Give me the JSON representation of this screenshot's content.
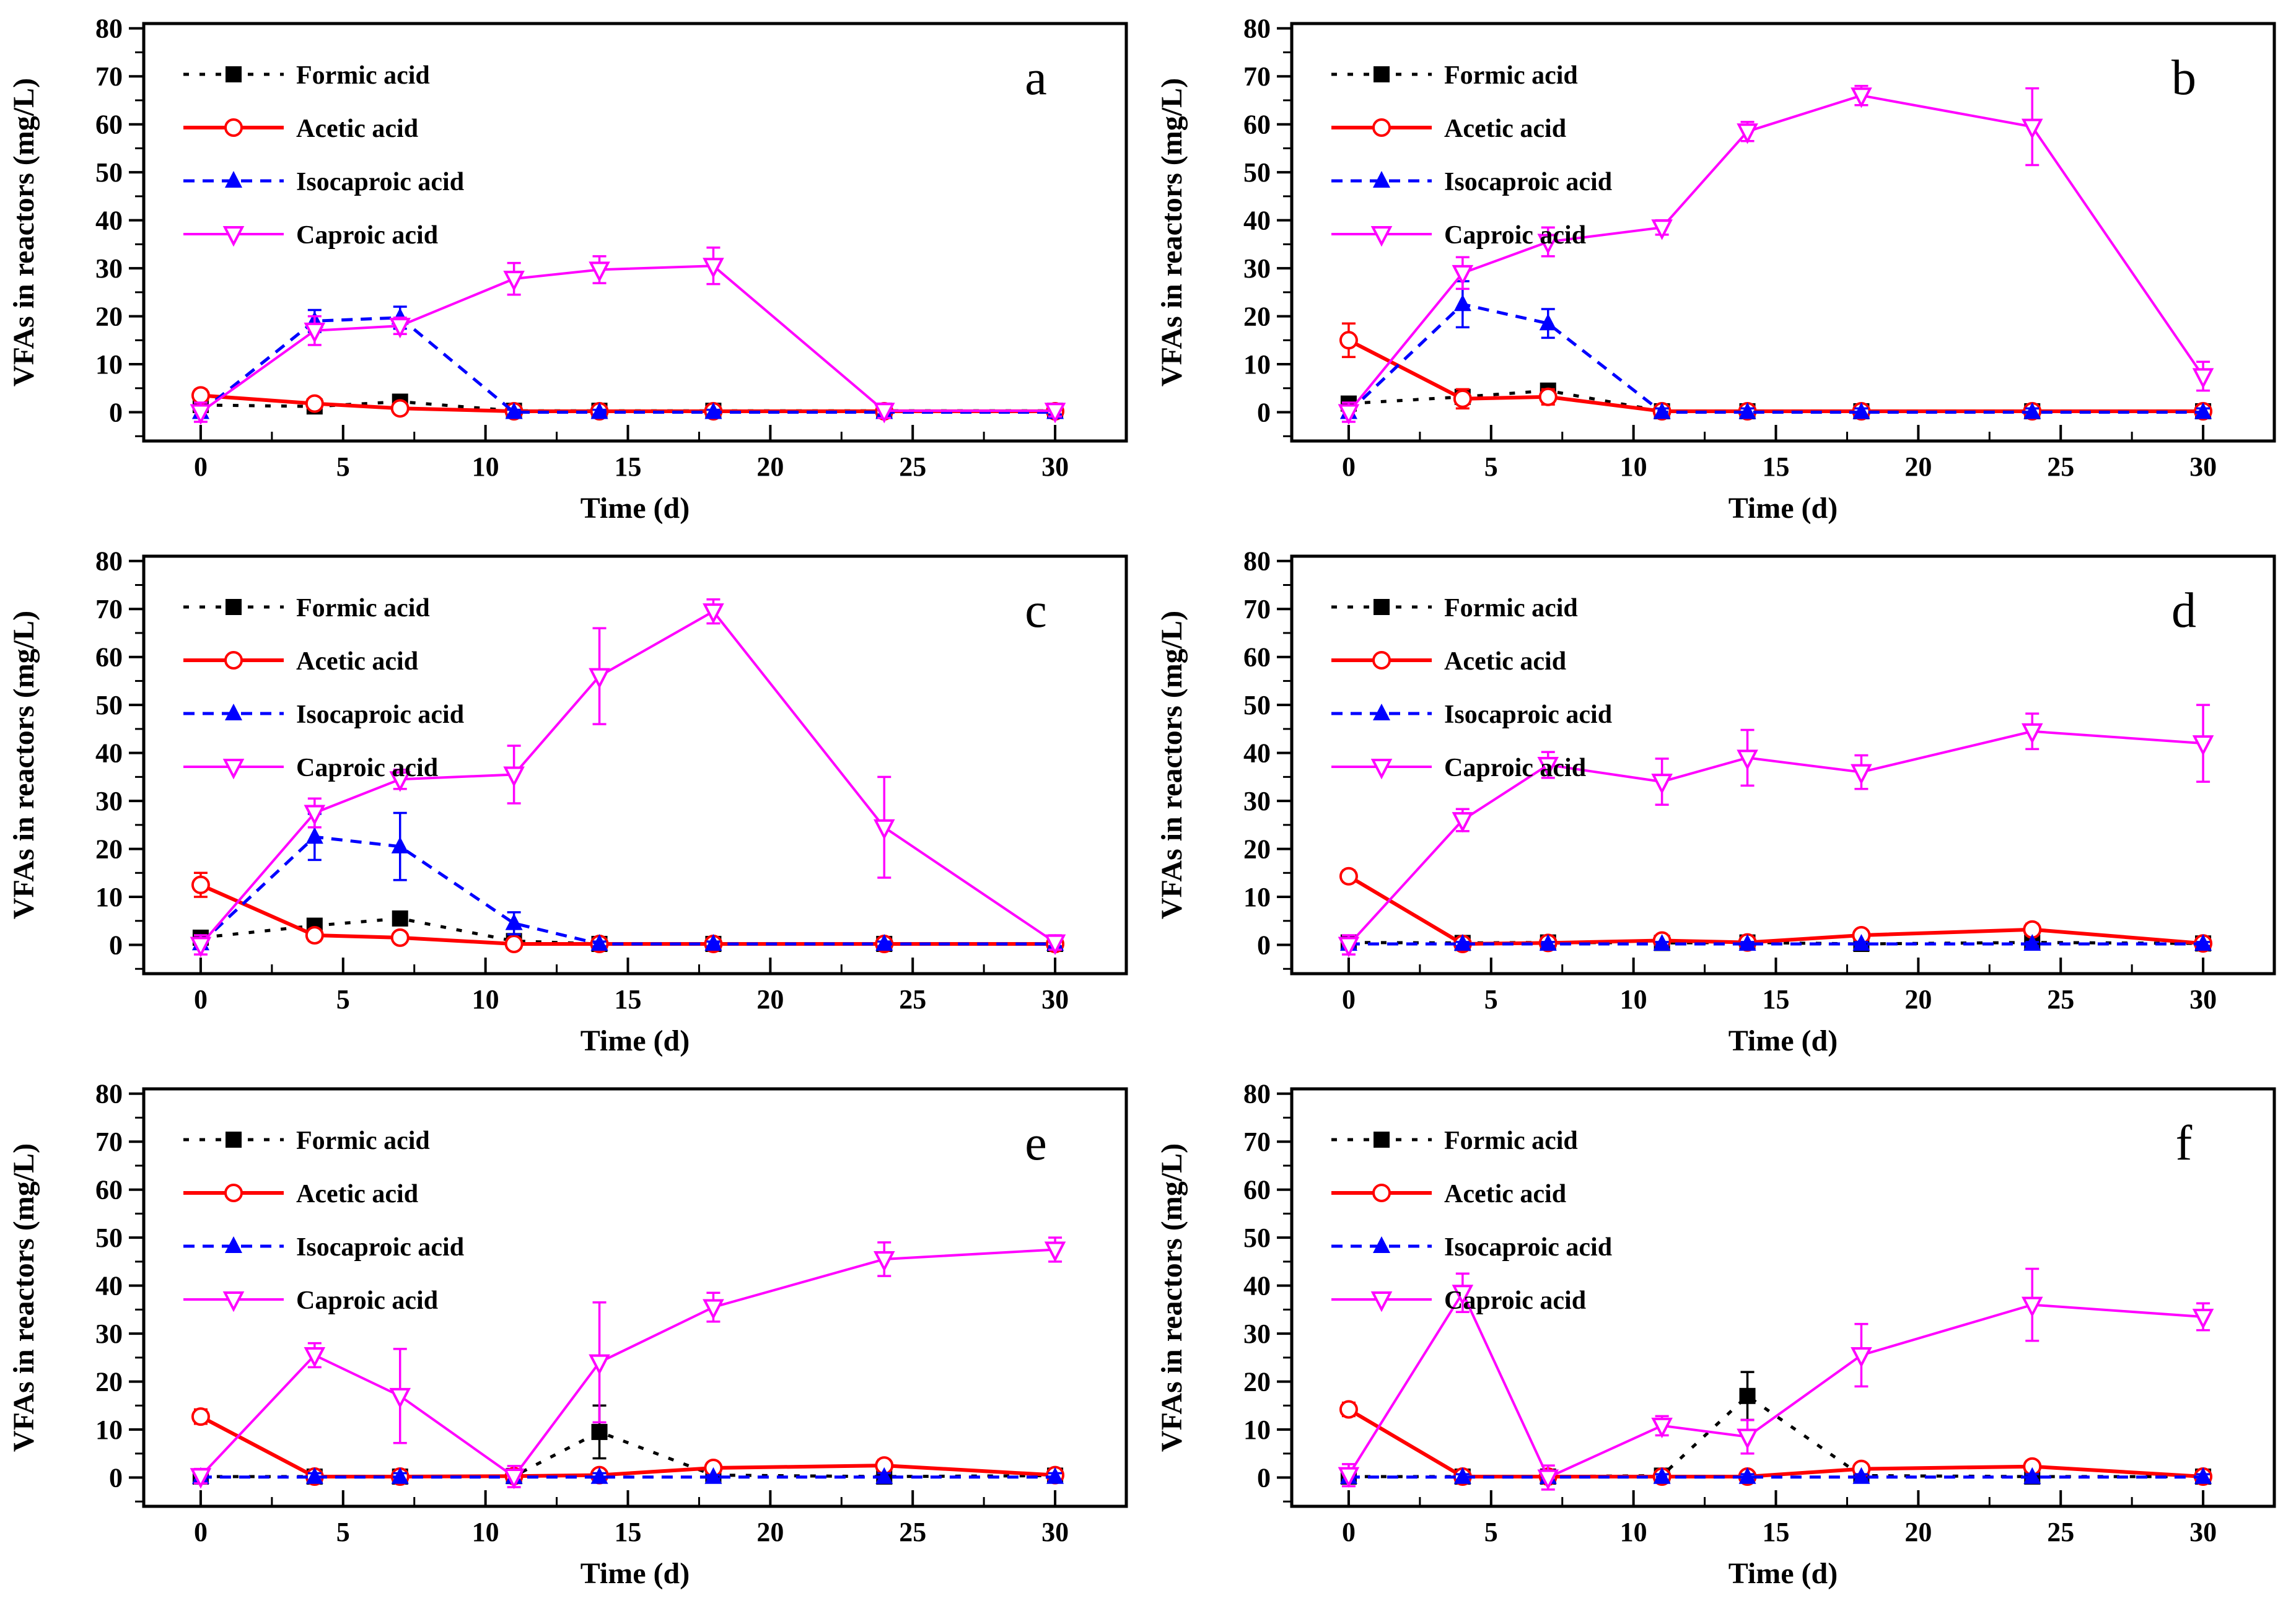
{
  "figure_title": "",
  "chart_data": {
    "type": "line",
    "layout": {
      "rows": 3,
      "cols": 2
    },
    "x_label": "Time (d)",
    "y_label": "VFAs in reactors (mg/L)",
    "x": [
      0,
      4,
      7,
      11,
      14,
      18,
      24,
      30
    ],
    "xlim": [
      -2,
      32.5
    ],
    "ylim": [
      -6,
      81
    ],
    "xticks": [
      0,
      5,
      10,
      15,
      20,
      25,
      30
    ],
    "x_minor_step": 2.5,
    "yticks": [
      0,
      10,
      20,
      30,
      40,
      50,
      60,
      70,
      80
    ],
    "y_minor_step": 5,
    "grid": false,
    "legend_position": "top-left",
    "series_defs": [
      {
        "name": "Formic acid",
        "color": "#000000",
        "marker": "square-filled",
        "line": "dashed"
      },
      {
        "name": "Acetic acid",
        "color": "#ff0000",
        "marker": "circle-open",
        "line": "solid"
      },
      {
        "name": "Isocaproic acid",
        "color": "#0000ff",
        "marker": "triangle-up-filled",
        "line": "dashed"
      },
      {
        "name": "Caproic acid",
        "color": "#ff00ff",
        "marker": "triangle-down-open",
        "line": "solid"
      }
    ],
    "panels": [
      {
        "label": "a",
        "series": [
          {
            "name": "Formic acid",
            "values": [
              1.5,
              1.2,
              2.2,
              0.3,
              0.3,
              0.3,
              0.3,
              0.3
            ],
            "errors": [
              0.5,
              0.5,
              0.8,
              0.2,
              0.2,
              0.2,
              0.2,
              0.2
            ]
          },
          {
            "name": "Acetic acid",
            "values": [
              3.5,
              1.8,
              0.8,
              0.2,
              0.2,
              0.2,
              0.2,
              0.2
            ],
            "errors": [
              1.2,
              0.8,
              1.0,
              0.3,
              0.2,
              0.2,
              0.2,
              0.2
            ]
          },
          {
            "name": "Isocaproic acid",
            "values": [
              0,
              19,
              19.7,
              0,
              0,
              0,
              0,
              0
            ],
            "errors": [
              1,
              2.3,
              2.3,
              0.5,
              0.5,
              0.5,
              0.5,
              0.5
            ]
          },
          {
            "name": "Caproic acid",
            "values": [
              0,
              17,
              18,
              27.8,
              29.7,
              30.5,
              0.3,
              0.3
            ],
            "errors": [
              2,
              3,
              1.7,
              3.3,
              2.8,
              3.8,
              1.5,
              1.2
            ]
          }
        ]
      },
      {
        "label": "b",
        "series": [
          {
            "name": "Formic acid",
            "values": [
              1.8,
              3.2,
              4.5,
              0.2,
              0.2,
              0.2,
              0.2,
              0.2
            ],
            "errors": [
              0.6,
              0.6,
              0.6,
              0.2,
              0.2,
              0.2,
              0.2,
              0.2
            ]
          },
          {
            "name": "Acetic acid",
            "values": [
              15,
              2.8,
              3.2,
              0.2,
              0.2,
              0.2,
              0.2,
              0.2
            ],
            "errors": [
              3.5,
              2,
              1.6,
              0.2,
              0.2,
              0.2,
              0.2,
              0.2
            ]
          },
          {
            "name": "Isocaproic acid",
            "values": [
              0,
              22.5,
              18.5,
              0,
              0,
              0,
              0,
              0
            ],
            "errors": [
              1,
              4.8,
              3,
              0.8,
              0.8,
              0.8,
              0.8,
              0.8
            ]
          },
          {
            "name": "Caproic acid",
            "values": [
              0,
              29,
              35.5,
              38.5,
              58.5,
              66,
              59.5,
              7.5
            ],
            "errors": [
              2,
              3.3,
              3,
              1.5,
              2,
              2,
              8,
              3
            ]
          }
        ]
      },
      {
        "label": "c",
        "series": [
          {
            "name": "Formic acid",
            "values": [
              1.5,
              4,
              5.5,
              0.8,
              0.2,
              0.2,
              0.2,
              0.2
            ],
            "errors": [
              0.6,
              1,
              1.2,
              0.4,
              0.2,
              0.2,
              0.2,
              0.2
            ]
          },
          {
            "name": "Acetic acid",
            "values": [
              12.5,
              2,
              1.5,
              0.2,
              0.2,
              0.2,
              0.2,
              0.2
            ],
            "errors": [
              2.5,
              1.2,
              1,
              0.8,
              0.2,
              0.2,
              0.2,
              0.2
            ]
          },
          {
            "name": "Isocaproic acid",
            "values": [
              0.3,
              22.5,
              20.5,
              4.5,
              0.2,
              0.2,
              0.2,
              0.2
            ],
            "errors": [
              1,
              4.8,
              7,
              2.3,
              0.5,
              0.5,
              0.5,
              0.5
            ]
          },
          {
            "name": "Caproic acid",
            "values": [
              0,
              27.5,
              34.5,
              35.5,
              56,
              69.5,
              24.5,
              0.5
            ],
            "errors": [
              2,
              3,
              2,
              6,
              10,
              2.5,
              10.5,
              1.5
            ]
          }
        ]
      },
      {
        "label": "d",
        "series": [
          {
            "name": "Formic acid",
            "values": [
              0.5,
              0.4,
              0.5,
              0.4,
              0.5,
              0.2,
              0.5,
              0.3
            ],
            "errors": [
              0.3,
              0.3,
              0.3,
              0.3,
              0.3,
              0.3,
              0.3,
              0.3
            ]
          },
          {
            "name": "Acetic acid",
            "values": [
              14.3,
              0.2,
              0.4,
              0.9,
              0.5,
              2,
              3.2,
              0.3
            ],
            "errors": [
              1.2,
              0.3,
              0.5,
              0.8,
              0.8,
              1,
              1.2,
              0.5
            ]
          },
          {
            "name": "Isocaproic acid",
            "values": [
              0.2,
              0.2,
              0.2,
              0.2,
              0.2,
              0.2,
              0.2,
              0.2
            ],
            "errors": [
              0.4,
              0.4,
              0.4,
              0.4,
              0.4,
              0.4,
              0.4,
              0.4
            ]
          },
          {
            "name": "Caproic acid",
            "values": [
              0,
              26,
              37.5,
              34,
              39,
              36,
              44.5,
              42
            ],
            "errors": [
              2,
              2.3,
              2.7,
              4.8,
              5.8,
              3.5,
              3.7,
              8
            ]
          }
        ]
      },
      {
        "label": "e",
        "series": [
          {
            "name": "Formic acid",
            "values": [
              0.2,
              0.2,
              0.2,
              0.3,
              9.5,
              0.5,
              0.2,
              0.4
            ],
            "errors": [
              0.2,
              0.2,
              0.2,
              0.3,
              5.5,
              0.4,
              0.2,
              0.3
            ]
          },
          {
            "name": "Acetic acid",
            "values": [
              12.7,
              0.2,
              0.2,
              0.3,
              0.5,
              2,
              2.5,
              0.5
            ],
            "errors": [
              1.5,
              0.2,
              0.2,
              0.3,
              0.5,
              0.8,
              1.2,
              0.4
            ]
          },
          {
            "name": "Isocaproic acid",
            "values": [
              0.1,
              0.1,
              0.1,
              0.1,
              0.1,
              0.1,
              0.1,
              0.1
            ],
            "errors": [
              0.6,
              0.8,
              0.8,
              0.8,
              0.8,
              0.4,
              0.8,
              0.8
            ]
          },
          {
            "name": "Caproic acid",
            "values": [
              0.3,
              25.5,
              17,
              0.2,
              24,
              35.5,
              45.5,
              47.5
            ],
            "errors": [
              1.5,
              2.5,
              9.8,
              2.2,
              12.5,
              3,
              3.5,
              2.5
            ]
          }
        ]
      },
      {
        "label": "f",
        "series": [
          {
            "name": "Formic acid",
            "values": [
              0.2,
              0.2,
              0.2,
              0.4,
              17,
              0.4,
              0.2,
              0.2
            ],
            "errors": [
              0.2,
              0.2,
              0.2,
              0.3,
              5,
              0.3,
              0.2,
              0.2
            ]
          },
          {
            "name": "Acetic acid",
            "values": [
              14.2,
              0.2,
              0.2,
              0.2,
              0.2,
              1.8,
              2.3,
              0.2
            ],
            "errors": [
              1.4,
              0.4,
              0.3,
              0.3,
              0.3,
              0.9,
              1.1,
              0.4
            ]
          },
          {
            "name": "Isocaproic acid",
            "values": [
              0.1,
              0.1,
              0.1,
              0.1,
              0.1,
              0.1,
              0.1,
              0.1
            ],
            "errors": [
              0.6,
              0.6,
              0.6,
              0.6,
              0.6,
              0.6,
              0.6,
              0.6
            ]
          },
          {
            "name": "Caproic acid",
            "values": [
              0.5,
              38.5,
              0,
              10.8,
              8.5,
              25.5,
              36,
              33.5
            ],
            "errors": [
              2.3,
              4,
              2.5,
              2,
              3.5,
              6.5,
              7.5,
              2.8
            ]
          }
        ]
      }
    ]
  }
}
